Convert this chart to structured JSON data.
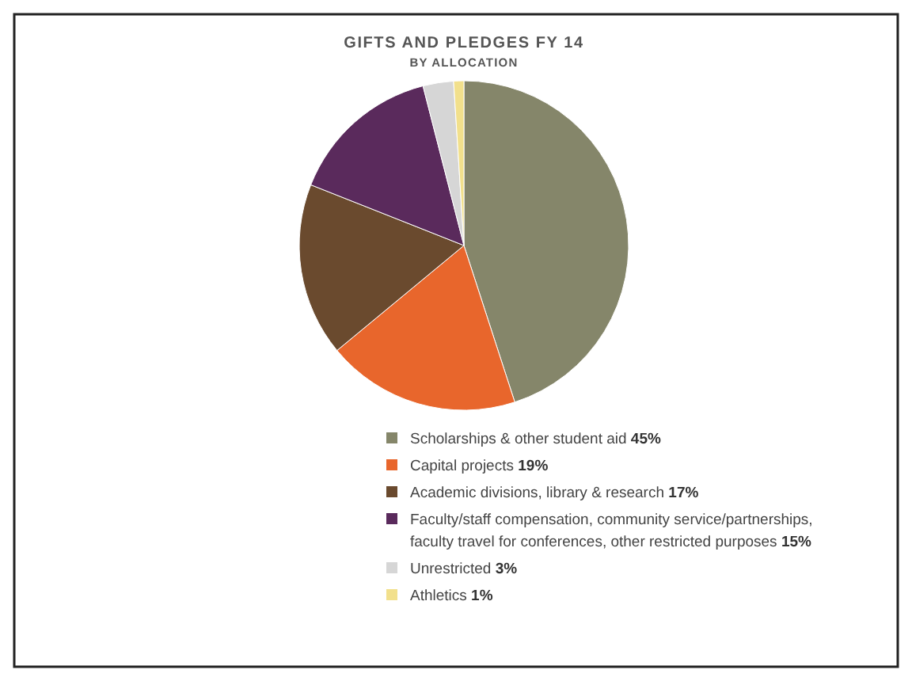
{
  "chart_data": {
    "type": "pie",
    "title": "GIFTS AND PLEDGES FY 14",
    "subtitle": "BY ALLOCATION",
    "categories": [
      "Scholarships & other student aid",
      "Capital projects",
      "Academic divisions, library & research",
      "Faculty/staff compensation, community service/partnerships, faculty travel for conferences, other restricted purposes",
      "Unrestricted",
      "Athletics"
    ],
    "values": [
      45,
      19,
      17,
      15,
      3,
      1
    ],
    "colors": [
      "#85866a",
      "#e8662c",
      "#6a4a2e",
      "#5a2a5c",
      "#d6d6d6",
      "#f2e08c"
    ],
    "value_labels": [
      "45%",
      "19%",
      "17%",
      "15%",
      "3%",
      "1%"
    ],
    "legend": "bottom"
  }
}
